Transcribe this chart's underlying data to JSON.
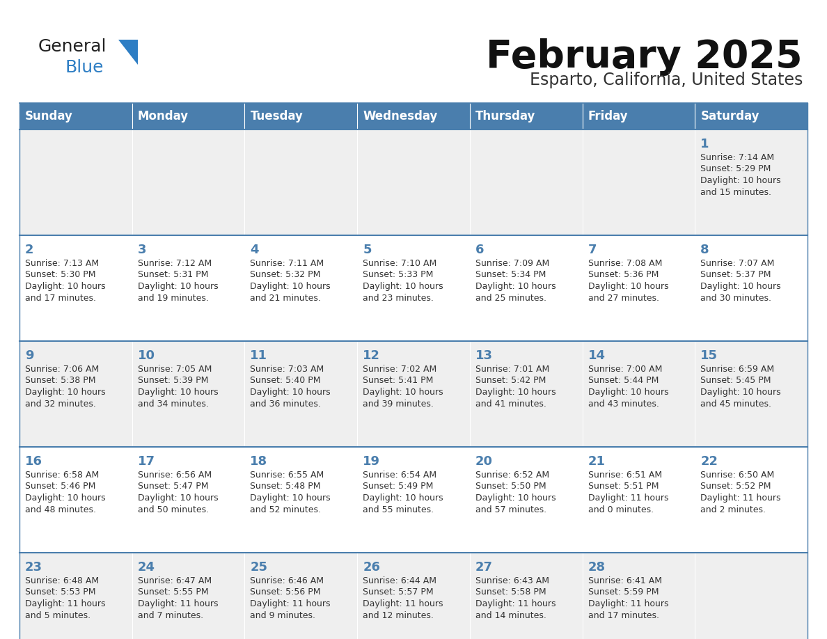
{
  "title": "February 2025",
  "subtitle": "Esparto, California, United States",
  "days_of_week": [
    "Sunday",
    "Monday",
    "Tuesday",
    "Wednesday",
    "Thursday",
    "Friday",
    "Saturday"
  ],
  "header_bg": "#4a7ead",
  "header_text": "#ffffff",
  "row_bg_light": "#efefef",
  "row_bg_white": "#ffffff",
  "day_number_color": "#4a7ead",
  "text_color": "#333333",
  "line_color": "#4a7ead",
  "logo_general_color": "#222222",
  "logo_blue_color": "#2e7ec4",
  "title_color": "#111111",
  "subtitle_color": "#333333",
  "calendar": [
    [
      null,
      null,
      null,
      null,
      null,
      null,
      1
    ],
    [
      2,
      3,
      4,
      5,
      6,
      7,
      8
    ],
    [
      9,
      10,
      11,
      12,
      13,
      14,
      15
    ],
    [
      16,
      17,
      18,
      19,
      20,
      21,
      22
    ],
    [
      23,
      24,
      25,
      26,
      27,
      28,
      null
    ]
  ],
  "sun_data": {
    "1": {
      "rise": "7:14 AM",
      "set": "5:29 PM",
      "hours": 10,
      "mins": 15
    },
    "2": {
      "rise": "7:13 AM",
      "set": "5:30 PM",
      "hours": 10,
      "mins": 17
    },
    "3": {
      "rise": "7:12 AM",
      "set": "5:31 PM",
      "hours": 10,
      "mins": 19
    },
    "4": {
      "rise": "7:11 AM",
      "set": "5:32 PM",
      "hours": 10,
      "mins": 21
    },
    "5": {
      "rise": "7:10 AM",
      "set": "5:33 PM",
      "hours": 10,
      "mins": 23
    },
    "6": {
      "rise": "7:09 AM",
      "set": "5:34 PM",
      "hours": 10,
      "mins": 25
    },
    "7": {
      "rise": "7:08 AM",
      "set": "5:36 PM",
      "hours": 10,
      "mins": 27
    },
    "8": {
      "rise": "7:07 AM",
      "set": "5:37 PM",
      "hours": 10,
      "mins": 30
    },
    "9": {
      "rise": "7:06 AM",
      "set": "5:38 PM",
      "hours": 10,
      "mins": 32
    },
    "10": {
      "rise": "7:05 AM",
      "set": "5:39 PM",
      "hours": 10,
      "mins": 34
    },
    "11": {
      "rise": "7:03 AM",
      "set": "5:40 PM",
      "hours": 10,
      "mins": 36
    },
    "12": {
      "rise": "7:02 AM",
      "set": "5:41 PM",
      "hours": 10,
      "mins": 39
    },
    "13": {
      "rise": "7:01 AM",
      "set": "5:42 PM",
      "hours": 10,
      "mins": 41
    },
    "14": {
      "rise": "7:00 AM",
      "set": "5:44 PM",
      "hours": 10,
      "mins": 43
    },
    "15": {
      "rise": "6:59 AM",
      "set": "5:45 PM",
      "hours": 10,
      "mins": 45
    },
    "16": {
      "rise": "6:58 AM",
      "set": "5:46 PM",
      "hours": 10,
      "mins": 48
    },
    "17": {
      "rise": "6:56 AM",
      "set": "5:47 PM",
      "hours": 10,
      "mins": 50
    },
    "18": {
      "rise": "6:55 AM",
      "set": "5:48 PM",
      "hours": 10,
      "mins": 52
    },
    "19": {
      "rise": "6:54 AM",
      "set": "5:49 PM",
      "hours": 10,
      "mins": 55
    },
    "20": {
      "rise": "6:52 AM",
      "set": "5:50 PM",
      "hours": 10,
      "mins": 57
    },
    "21": {
      "rise": "6:51 AM",
      "set": "5:51 PM",
      "hours": 11,
      "mins": 0
    },
    "22": {
      "rise": "6:50 AM",
      "set": "5:52 PM",
      "hours": 11,
      "mins": 2
    },
    "23": {
      "rise": "6:48 AM",
      "set": "5:53 PM",
      "hours": 11,
      "mins": 5
    },
    "24": {
      "rise": "6:47 AM",
      "set": "5:55 PM",
      "hours": 11,
      "mins": 7
    },
    "25": {
      "rise": "6:46 AM",
      "set": "5:56 PM",
      "hours": 11,
      "mins": 9
    },
    "26": {
      "rise": "6:44 AM",
      "set": "5:57 PM",
      "hours": 11,
      "mins": 12
    },
    "27": {
      "rise": "6:43 AM",
      "set": "5:58 PM",
      "hours": 11,
      "mins": 14
    },
    "28": {
      "rise": "6:41 AM",
      "set": "5:59 PM",
      "hours": 11,
      "mins": 17
    }
  }
}
